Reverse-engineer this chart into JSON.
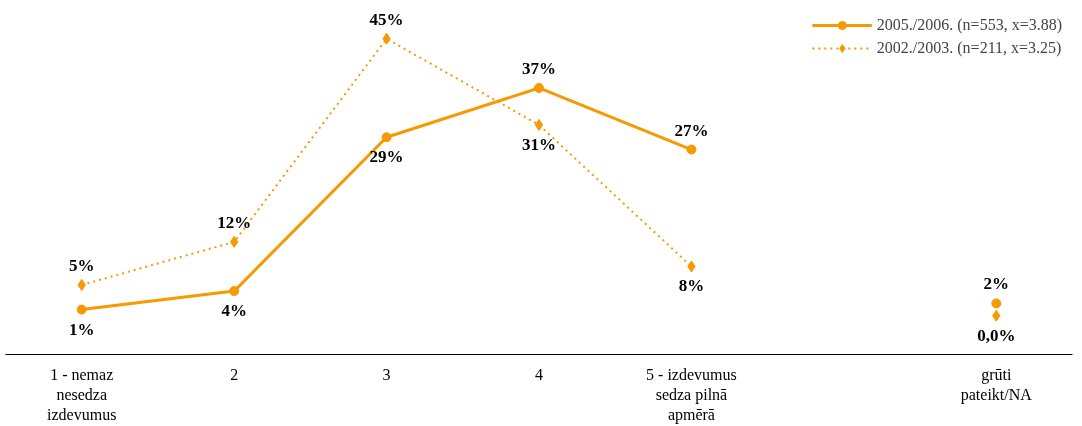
{
  "chart_data": {
    "type": "line",
    "categories": [
      "1 - nemaz nesedza izdevumus",
      "2",
      "3",
      "4",
      "5 - izdevumus sedza pilnā apmērā",
      null,
      "grūti pateikt/NA"
    ],
    "series": [
      {
        "name": "2005./2006. (n=553, x=3.88)",
        "color": "#f59a00",
        "marker": "circle",
        "line_style": "solid",
        "values": [
          1,
          4,
          29,
          37,
          27,
          null,
          2
        ],
        "value_labels": [
          "1%",
          "4%",
          "29%",
          "37%",
          "27%",
          null,
          "2%"
        ]
      },
      {
        "name": "2002./2003. (n=211, x=3.25)",
        "color": "#f59a00",
        "marker": "diamond",
        "line_style": "dotted",
        "values": [
          5,
          12,
          45,
          31,
          8,
          null,
          0
        ],
        "value_labels": [
          "5%",
          "12%",
          "45%",
          "31%",
          "8%",
          null,
          "0,0%"
        ]
      }
    ],
    "legend": "top right",
    "grid": false
  }
}
